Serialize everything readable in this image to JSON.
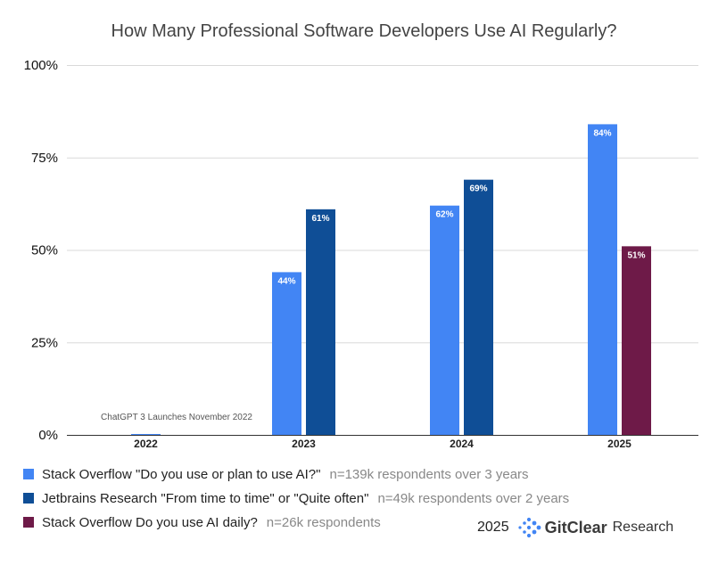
{
  "chart_data": {
    "type": "bar",
    "title": "How Many Professional Software Developers Use AI Regularly?",
    "categories": [
      "2022",
      "2023",
      "2024",
      "2025"
    ],
    "y_ticks": [
      "0%",
      "25%",
      "50%",
      "75%",
      "100%"
    ],
    "ylim": [
      0,
      100
    ],
    "grid": true,
    "legend_position": "bottom",
    "series": [
      {
        "name": "Stack Overflow \"Do you use or plan to use AI?\"",
        "note": "n=139k respondents over 3 years",
        "color": "#4285f4",
        "values": [
          0,
          44,
          62,
          84
        ],
        "labels": [
          "",
          "44%",
          "62%",
          "84%"
        ]
      },
      {
        "name": "Jetbrains Research \"From time to time\" or \"Quite often\"",
        "note": "n=49k respondents over 2 years",
        "color": "#0f4e96",
        "values": [
          null,
          61,
          69,
          null
        ],
        "labels": [
          "",
          "61%",
          "69%",
          ""
        ]
      },
      {
        "name": "Stack Overflow Do you use AI daily?",
        "note": "n=26k respondents",
        "color": "#6e1a48",
        "values": [
          null,
          null,
          null,
          51
        ],
        "labels": [
          "",
          "",
          "",
          "51%"
        ]
      }
    ],
    "annotations": [
      {
        "text": "ChatGPT 3 Launches November 2022",
        "category": "2022"
      }
    ]
  },
  "branding": {
    "year": "2025",
    "name": "GitClear",
    "suffix": "Research",
    "icon": "gitclear-dots-logo",
    "accent": "#4285f4"
  }
}
